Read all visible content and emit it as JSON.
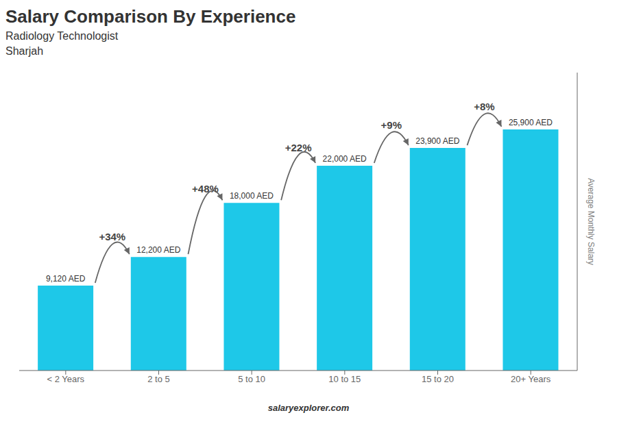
{
  "chart_data": {
    "type": "bar",
    "title": "Salary Comparison By Experience",
    "subtitle": "Radiology Technologist",
    "ylabel": "Average Monthly Salary",
    "annotations": [
      {
        "text": "Sharjah"
      },
      {
        "text": "salaryexplorer.com"
      },
      {
        "text": "+34%",
        "from": "< 2 Years",
        "to": "2 to 5"
      },
      {
        "text": "+48%",
        "from": "2 to 5",
        "to": "5 to 10"
      },
      {
        "text": "+22%",
        "from": "5 to 10",
        "to": "10 to 15"
      },
      {
        "text": "+9%",
        "from": "10 to 15",
        "to": "15 to 20"
      },
      {
        "text": "+8%",
        "from": "15 to 20",
        "to": "20+ Years"
      }
    ],
    "categories": [
      "< 2 Years",
      "2 to 5",
      "5 to 10",
      "10 to 15",
      "15 to 20",
      "20+ Years"
    ],
    "values": [
      9120,
      12200,
      18000,
      22000,
      23900,
      25900
    ],
    "value_labels": [
      "9,120 AED",
      "12,200 AED",
      "18,000 AED",
      "22,000 AED",
      "23,900 AED",
      "25,900 AED"
    ],
    "data_labels": true,
    "color": "#1EC8E8",
    "ylim": [
      0,
      32000
    ],
    "tick_labels": "x",
    "grid": false
  }
}
